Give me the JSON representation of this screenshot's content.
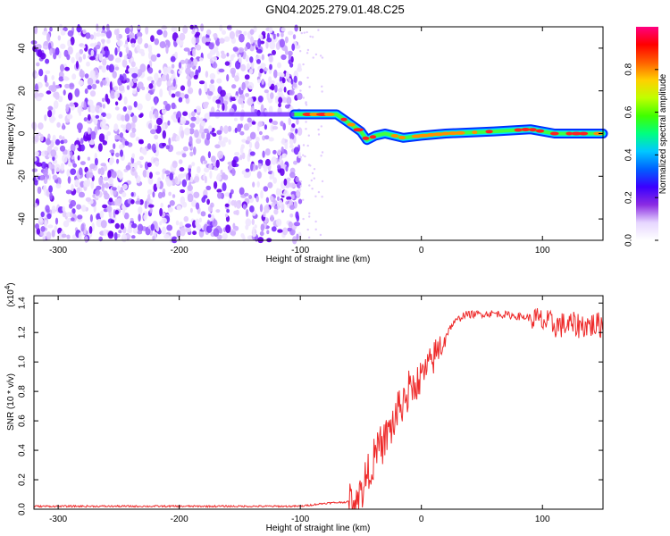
{
  "title": "GN04.2025.279.01.48.C25",
  "chart_data": [
    {
      "type": "heatmap",
      "name": "spectrogram",
      "xlabel": "Height of straight line (km)",
      "ylabel": "Frequency (Hz)",
      "xlim": [
        -320,
        150
      ],
      "ylim": [
        -50,
        50
      ],
      "xticks": [
        -300,
        -200,
        -100,
        0,
        100
      ],
      "yticks": [
        -40,
        -20,
        0,
        20,
        40
      ],
      "colorbar": {
        "label": "Normalized spectral amplitude",
        "range": [
          0,
          1
        ],
        "ticks": [
          0.0,
          0.2,
          0.4,
          0.6,
          0.8
        ],
        "colors": [
          "#ffffff",
          "#e6d6ff",
          "#8a2be2",
          "#3a00ff",
          "#0060ff",
          "#00c8ff",
          "#00ff80",
          "#40ff00",
          "#c0ff00",
          "#ffd000",
          "#ff6000",
          "#ff0000",
          "#ff0080"
        ]
      },
      "noise_region_x": [
        -320,
        -100
      ],
      "carrier_track": [
        {
          "x": -105,
          "y": 9
        },
        {
          "x": -70,
          "y": 9
        },
        {
          "x": -60,
          "y": 5
        },
        {
          "x": -50,
          "y": 1
        },
        {
          "x": -45,
          "y": -3
        },
        {
          "x": -38,
          "y": -1
        },
        {
          "x": -30,
          "y": 0
        },
        {
          "x": -15,
          "y": -2
        },
        {
          "x": 0,
          "y": -1
        },
        {
          "x": 20,
          "y": 0
        },
        {
          "x": 60,
          "y": 1
        },
        {
          "x": 90,
          "y": 2
        },
        {
          "x": 110,
          "y": 0
        },
        {
          "x": 150,
          "y": 0
        }
      ]
    },
    {
      "type": "line",
      "name": "snr",
      "xlabel": "Height of straight line (km)",
      "ylabel": "SNR (10 * v/v)",
      "scale_note": "(x10",
      "scale_exp": "4",
      "scale_close": ")",
      "xlim": [
        -320,
        150
      ],
      "ylim": [
        0,
        1.45
      ],
      "xticks": [
        -300,
        -200,
        -100,
        0,
        100
      ],
      "yticks": [
        0.0,
        0.2,
        0.4,
        0.6,
        0.8,
        1.0,
        1.2,
        1.4
      ],
      "color": "#ee2b2b",
      "envelope": [
        {
          "x": -320,
          "y": 0.02
        },
        {
          "x": -100,
          "y": 0.02
        },
        {
          "x": -80,
          "y": 0.04
        },
        {
          "x": -60,
          "y": 0.05
        },
        {
          "x": -50,
          "y": 0.1
        },
        {
          "x": -42,
          "y": 0.3
        },
        {
          "x": -35,
          "y": 0.4
        },
        {
          "x": -25,
          "y": 0.55
        },
        {
          "x": -15,
          "y": 0.75
        },
        {
          "x": -5,
          "y": 0.85
        },
        {
          "x": 5,
          "y": 0.95
        },
        {
          "x": 15,
          "y": 1.1
        },
        {
          "x": 25,
          "y": 1.25
        },
        {
          "x": 35,
          "y": 1.32
        },
        {
          "x": 60,
          "y": 1.33
        },
        {
          "x": 90,
          "y": 1.3
        },
        {
          "x": 110,
          "y": 1.25
        },
        {
          "x": 150,
          "y": 1.25
        }
      ]
    }
  ]
}
